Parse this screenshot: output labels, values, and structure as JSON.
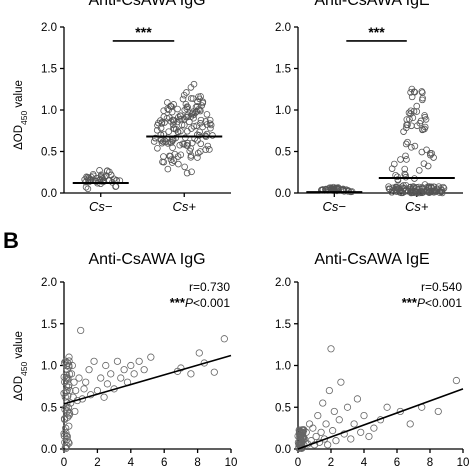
{
  "panel_b_label": "B",
  "chart_data": [
    {
      "type": "scatter",
      "subtype": "dot-plot",
      "title": "Anti-CsAWA IgG",
      "ylabel": "ΔOD450 value",
      "ylim": [
        0,
        2.0
      ],
      "yticks": [
        "0.0",
        "0.5",
        "1.0",
        "1.5",
        "2.0"
      ],
      "categories": [
        "Cs−",
        "Cs+"
      ],
      "median": [
        0.12,
        0.68
      ],
      "range": [
        [
          0.02,
          0.3
        ],
        [
          0.15,
          1.42
        ]
      ],
      "n": [
        45,
        160
      ],
      "significance": "***",
      "point_color": "#555555"
    },
    {
      "type": "scatter",
      "subtype": "dot-plot",
      "title": "Anti-CsAWA IgE",
      "ylabel": "",
      "ylim": [
        0,
        2.0
      ],
      "yticks": [
        "0.0",
        "0.5",
        "1.0",
        "1.5",
        "2.0"
      ],
      "categories": [
        "Cs−",
        "Cs+"
      ],
      "median": [
        0.01,
        0.18
      ],
      "range": [
        [
          0.0,
          0.08
        ],
        [
          0.0,
          1.27
        ]
      ],
      "n": [
        45,
        160
      ],
      "significance": "***",
      "point_color": "#555555"
    },
    {
      "type": "scatter",
      "title": "Anti-CsAWA IgG",
      "ylabel": "ΔOD450 value",
      "xlim": [
        0,
        10
      ],
      "ylim": [
        0,
        2.0
      ],
      "xticks": [
        "0",
        "2",
        "4",
        "6",
        "8",
        "10"
      ],
      "yticks": [
        "0.0",
        "0.5",
        "1.0",
        "1.5",
        "2.0"
      ],
      "r_text": "r=0.730",
      "sig_text": "***",
      "p_text": "P<0.001",
      "fit": {
        "x": [
          0,
          10
        ],
        "y": [
          0.54,
          1.12
        ]
      },
      "points": [
        [
          0.05,
          0.08
        ],
        [
          0.1,
          0.25
        ],
        [
          0.12,
          0.5
        ],
        [
          0.15,
          0.75
        ],
        [
          0.2,
          0.95
        ],
        [
          0.1,
          1.05
        ],
        [
          0.3,
          0.4
        ],
        [
          0.35,
          0.7
        ],
        [
          0.4,
          0.55
        ],
        [
          0.45,
          0.9
        ],
        [
          0.5,
          1.0
        ],
        [
          0.55,
          0.62
        ],
        [
          0.6,
          0.8
        ],
        [
          0.65,
          0.45
        ],
        [
          0.7,
          0.7
        ],
        [
          0.8,
          0.58
        ],
        [
          0.9,
          0.85
        ],
        [
          1.0,
          1.42
        ],
        [
          1.1,
          0.6
        ],
        [
          1.2,
          0.72
        ],
        [
          1.3,
          0.8
        ],
        [
          1.5,
          0.95
        ],
        [
          1.6,
          0.65
        ],
        [
          1.8,
          1.05
        ],
        [
          2.0,
          0.7
        ],
        [
          2.2,
          0.85
        ],
        [
          2.4,
          0.62
        ],
        [
          2.5,
          1.0
        ],
        [
          2.6,
          0.78
        ],
        [
          2.8,
          0.9
        ],
        [
          3.0,
          0.72
        ],
        [
          3.2,
          1.05
        ],
        [
          3.4,
          0.85
        ],
        [
          3.6,
          0.95
        ],
        [
          3.8,
          0.8
        ],
        [
          4.0,
          1.0
        ],
        [
          4.2,
          0.9
        ],
        [
          4.5,
          1.05
        ],
        [
          4.8,
          0.95
        ],
        [
          5.2,
          1.1
        ],
        [
          6.8,
          0.93
        ],
        [
          7.0,
          0.97
        ],
        [
          7.6,
          0.9
        ],
        [
          8.1,
          1.15
        ],
        [
          8.4,
          1.03
        ],
        [
          9.0,
          0.92
        ],
        [
          9.6,
          1.32
        ],
        [
          0.08,
          0.02
        ],
        [
          0.2,
          0.15
        ],
        [
          0.3,
          1.1
        ]
      ]
    },
    {
      "type": "scatter",
      "title": "Anti-CsAWA IgE",
      "ylabel": "",
      "xlim": [
        0,
        10
      ],
      "ylim": [
        0,
        2.0
      ],
      "xticks": [
        "0",
        "2",
        "4",
        "6",
        "8",
        "10"
      ],
      "yticks": [
        "0.0",
        "0.5",
        "1.0",
        "1.5",
        "2.0"
      ],
      "r_text": "r=0.540",
      "sig_text": "***",
      "p_text": "P<0.001",
      "fit": {
        "x": [
          0,
          10
        ],
        "y": [
          0.0,
          0.72
        ]
      },
      "points": [
        [
          0.05,
          0.02
        ],
        [
          0.1,
          0.05
        ],
        [
          0.15,
          0.1
        ],
        [
          0.2,
          0.03
        ],
        [
          0.25,
          0.08
        ],
        [
          0.3,
          0.15
        ],
        [
          0.35,
          0.05
        ],
        [
          0.4,
          0.12
        ],
        [
          0.5,
          0.2
        ],
        [
          0.6,
          0.06
        ],
        [
          0.7,
          0.3
        ],
        [
          0.8,
          0.1
        ],
        [
          0.9,
          0.25
        ],
        [
          1.0,
          0.05
        ],
        [
          1.1,
          0.15
        ],
        [
          1.2,
          0.4
        ],
        [
          1.3,
          0.08
        ],
        [
          1.4,
          0.2
        ],
        [
          1.5,
          0.55
        ],
        [
          1.6,
          0.12
        ],
        [
          1.7,
          0.3
        ],
        [
          1.8,
          0.05
        ],
        [
          1.9,
          0.7
        ],
        [
          2.0,
          1.2
        ],
        [
          2.1,
          0.22
        ],
        [
          2.2,
          0.45
        ],
        [
          2.3,
          0.1
        ],
        [
          2.5,
          0.35
        ],
        [
          2.6,
          0.8
        ],
        [
          2.8,
          0.18
        ],
        [
          3.0,
          0.5
        ],
        [
          3.2,
          0.12
        ],
        [
          3.4,
          0.3
        ],
        [
          3.6,
          0.6
        ],
        [
          3.8,
          0.2
        ],
        [
          4.0,
          0.4
        ],
        [
          4.3,
          0.15
        ],
        [
          4.6,
          0.25
        ],
        [
          5.0,
          0.35
        ],
        [
          5.4,
          0.5
        ],
        [
          6.2,
          0.45
        ],
        [
          6.8,
          0.3
        ],
        [
          7.5,
          0.5
        ],
        [
          8.5,
          0.45
        ],
        [
          9.6,
          0.82
        ]
      ]
    }
  ]
}
